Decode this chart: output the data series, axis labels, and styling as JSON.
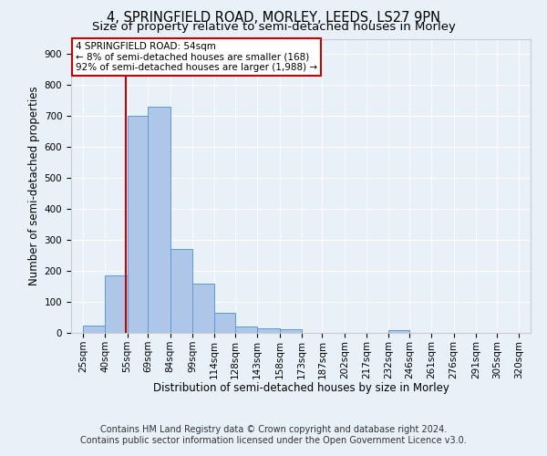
{
  "title1": "4, SPRINGFIELD ROAD, MORLEY, LEEDS, LS27 9PN",
  "title2": "Size of property relative to semi-detached houses in Morley",
  "xlabel": "Distribution of semi-detached houses by size in Morley",
  "ylabel": "Number of semi-detached properties",
  "footer1": "Contains HM Land Registry data © Crown copyright and database right 2024.",
  "footer2": "Contains public sector information licensed under the Open Government Licence v3.0.",
  "annotation_line1": "4 SPRINGFIELD ROAD: 54sqm",
  "annotation_line2": "← 8% of semi-detached houses are smaller (168)",
  "annotation_line3": "92% of semi-detached houses are larger (1,988) →",
  "bar_left_edges": [
    25,
    40,
    55,
    69,
    84,
    99,
    114,
    128,
    143,
    158,
    173,
    187,
    202,
    217,
    232,
    246,
    261,
    276,
    291,
    305
  ],
  "bar_widths": [
    15,
    15,
    14,
    15,
    15,
    15,
    14,
    15,
    15,
    15,
    14,
    15,
    15,
    15,
    14,
    15,
    15,
    15,
    14,
    15
  ],
  "bar_heights": [
    25,
    185,
    700,
    730,
    270,
    160,
    65,
    22,
    15,
    12,
    0,
    0,
    0,
    0,
    8,
    0,
    0,
    0,
    0,
    0
  ],
  "bar_color": "#aec6e8",
  "bar_edgecolor": "#5b9bd5",
  "vline_x": 54,
  "vline_color": "#cc0000",
  "annotation_box_edgecolor": "#cc0000",
  "annotation_box_facecolor": "#ffffff",
  "xlim": [
    17,
    328
  ],
  "ylim": [
    0,
    950
  ],
  "yticks": [
    0,
    100,
    200,
    300,
    400,
    500,
    600,
    700,
    800,
    900
  ],
  "xtick_labels": [
    "25sqm",
    "40sqm",
    "55sqm",
    "69sqm",
    "84sqm",
    "99sqm",
    "114sqm",
    "128sqm",
    "143sqm",
    "158sqm",
    "173sqm",
    "187sqm",
    "202sqm",
    "217sqm",
    "232sqm",
    "246sqm",
    "261sqm",
    "276sqm",
    "291sqm",
    "305sqm",
    "320sqm"
  ],
  "xtick_positions": [
    25,
    40,
    55,
    69,
    84,
    99,
    114,
    128,
    143,
    158,
    173,
    187,
    202,
    217,
    232,
    246,
    261,
    276,
    291,
    305,
    320
  ],
  "background_color": "#e8f0f8",
  "plot_background": "#e8f0f8",
  "grid_color": "#ffffff",
  "title1_fontsize": 10.5,
  "title2_fontsize": 9.5,
  "axis_label_fontsize": 8.5,
  "tick_fontsize": 7.5,
  "footer_fontsize": 7,
  "annotation_fontsize": 7.5
}
